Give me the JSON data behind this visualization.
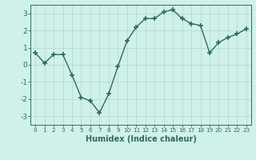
{
  "x": [
    0,
    1,
    2,
    3,
    4,
    5,
    6,
    7,
    8,
    9,
    10,
    11,
    12,
    13,
    14,
    15,
    16,
    17,
    18,
    19,
    20,
    21,
    22,
    23
  ],
  "y": [
    0.7,
    0.1,
    0.6,
    0.6,
    -0.6,
    -1.9,
    -2.1,
    -2.8,
    -1.7,
    -0.1,
    1.4,
    2.2,
    2.7,
    2.7,
    3.1,
    3.2,
    2.7,
    2.4,
    2.3,
    0.7,
    1.3,
    1.6,
    1.8,
    2.1
  ],
  "line_color": "#2e6b5e",
  "bg_color": "#d0f0eb",
  "grid_color": "#b8ddd8",
  "xlabel": "Humidex (Indice chaleur)",
  "ylim": [
    -3.5,
    3.5
  ],
  "xlim": [
    -0.5,
    23.5
  ],
  "yticks": [
    -3,
    -2,
    -1,
    0,
    1,
    2,
    3
  ],
  "xticks": [
    0,
    1,
    2,
    3,
    4,
    5,
    6,
    7,
    8,
    9,
    10,
    11,
    12,
    13,
    14,
    15,
    16,
    17,
    18,
    19,
    20,
    21,
    22,
    23
  ],
  "marker": "+",
  "marker_size": 4,
  "line_width": 1.0,
  "xlabel_fontsize": 7,
  "ytick_fontsize": 6.5,
  "xtick_fontsize": 5.2
}
